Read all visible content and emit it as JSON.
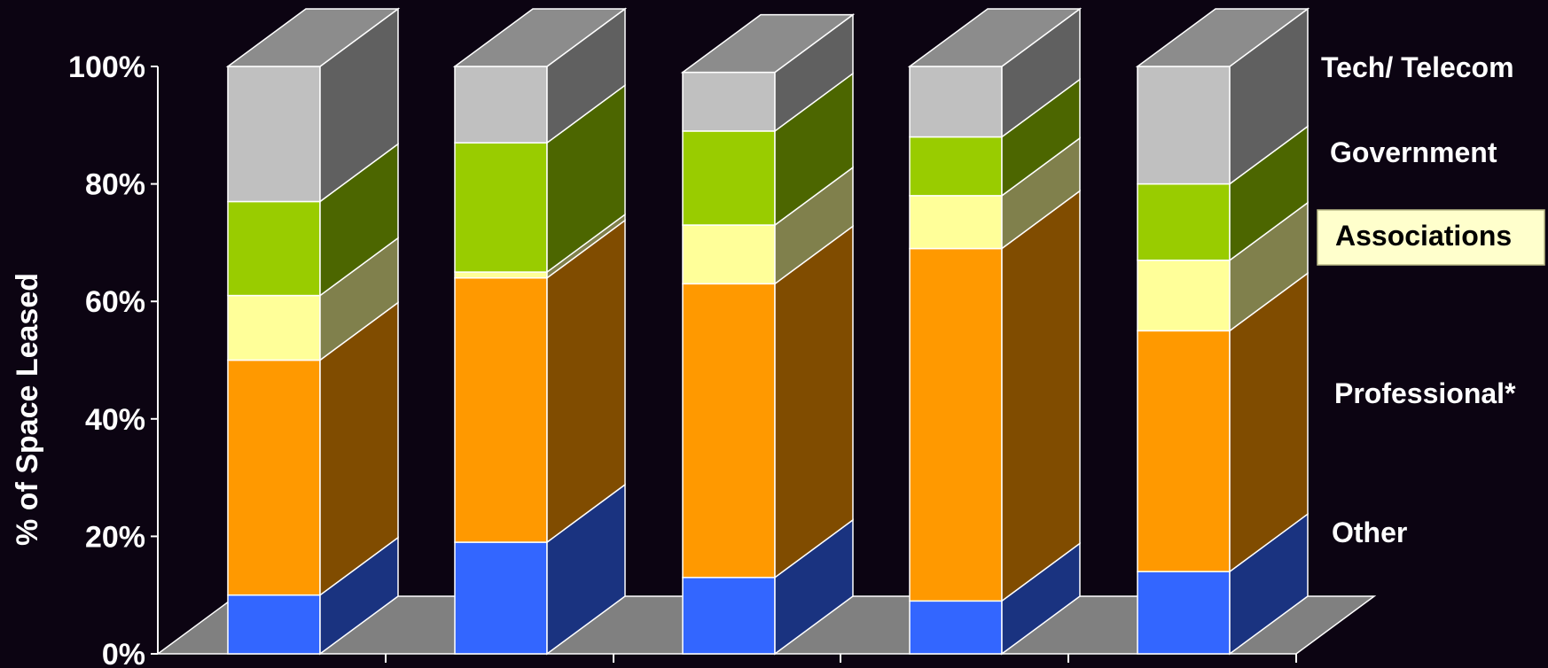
{
  "chart_data": {
    "type": "bar",
    "stacked": true,
    "three_d": true,
    "title": "",
    "xlabel": "",
    "ylabel": "% of Space Leased",
    "ylim": [
      0,
      100
    ],
    "y_ticks": [
      "0%",
      "20%",
      "40%",
      "60%",
      "80%",
      "100%"
    ],
    "categories": [
      "",
      "",
      "",
      "",
      ""
    ],
    "highlighted_legend": "Associations",
    "series": [
      {
        "name": "Other",
        "color": "#3366ff",
        "side_color": "#1a3380",
        "values": [
          10,
          19,
          13,
          9,
          14
        ]
      },
      {
        "name": "Professional*",
        "color": "#ff9900",
        "side_color": "#804c00",
        "values": [
          40,
          45,
          50,
          60,
          41
        ]
      },
      {
        "name": "Associations",
        "color": "#ffff99",
        "side_color": "#80804c",
        "values": [
          11,
          1,
          10,
          9,
          12
        ]
      },
      {
        "name": "Government",
        "color": "#99cc00",
        "side_color": "#4c6600",
        "values": [
          16,
          22,
          16,
          10,
          13
        ]
      },
      {
        "name": "Tech/ Telecom",
        "color": "#c0c0c0",
        "side_color": "#606060",
        "values": [
          23,
          13,
          10,
          12,
          20
        ]
      }
    ]
  }
}
